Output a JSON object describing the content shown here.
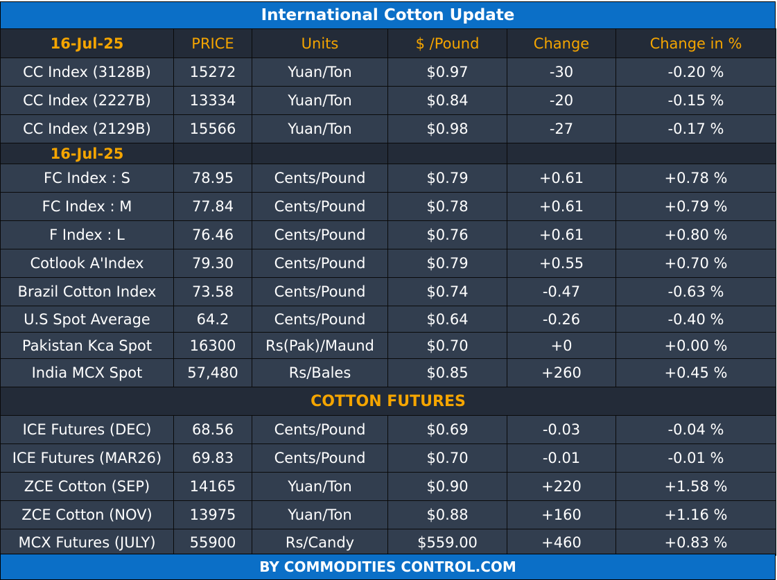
{
  "title": "International Cotton Update",
  "footer": "BY  COMMODITIES CONTROL.COM",
  "colors": {
    "banner": "#0b6fc7",
    "cell_bg": "#323e4f",
    "header_bg": "#232b38",
    "header_text": "#f5a500",
    "text": "#ffffff"
  },
  "header": {
    "date": "16-Jul-25",
    "price": "PRICE",
    "units": "Units",
    "usd_per_pound": "$ /Pound",
    "change": "Change",
    "change_pct": "Change in %"
  },
  "cc_rows": [
    {
      "name": "CC Index (3128B)",
      "price": "15272",
      "units": "Yuan/Ton",
      "usd": "$0.97",
      "change": "-30",
      "pct": "-0.20 %"
    },
    {
      "name": "CC Index (2227B)",
      "price": "13334",
      "units": "Yuan/Ton",
      "usd": "$0.84",
      "change": "-20",
      "pct": "-0.15 %"
    },
    {
      "name": "CC Index (2129B)",
      "price": "15566",
      "units": "Yuan/Ton",
      "usd": "$0.98",
      "change": "-27",
      "pct": "-0.17 %"
    }
  ],
  "section2_date": "16-Jul-25",
  "index_rows": [
    {
      "name": "FC Index : S",
      "price": "78.95",
      "units": "Cents/Pound",
      "usd": "$0.79",
      "change": "+0.61",
      "pct": "+0.78 %"
    },
    {
      "name": "FC Index : M",
      "price": "77.84",
      "units": "Cents/Pound",
      "usd": "$0.78",
      "change": "+0.61",
      "pct": "+0.79 %"
    },
    {
      "name": "F Index : L",
      "price": "76.46",
      "units": "Cents/Pound",
      "usd": "$0.76",
      "change": "+0.61",
      "pct": "+0.80 %"
    },
    {
      "name": "Cotlook A'Index",
      "price": "79.30",
      "units": "Cents/Pound",
      "usd": "$0.79",
      "change": "+0.55",
      "pct": "+0.70 %"
    },
    {
      "name": "Brazil Cotton Index",
      "price": "73.58",
      "units": "Cents/Pound",
      "usd": "$0.74",
      "change": "-0.47",
      "pct": "-0.63 %"
    },
    {
      "name": "U.S Spot Average",
      "price": "64.2",
      "units": "Cents/Pound",
      "usd": "$0.64",
      "change": "-0.26",
      "pct": "-0.40 %"
    },
    {
      "name": "Pakistan Kca Spot",
      "price": "16300",
      "units": "Rs(Pak)/Maund",
      "usd": "$0.70",
      "change": "+0",
      "pct": "+0.00 %"
    },
    {
      "name": "India MCX Spot",
      "price": "57,480",
      "units": "Rs/Bales",
      "usd": "$0.85",
      "change": "+260",
      "pct": "+0.45 %"
    }
  ],
  "futures_title": "COTTON FUTURES",
  "futures_rows": [
    {
      "name": "ICE Futures (DEC)",
      "price": "68.56",
      "units": "Cents/Pound",
      "usd": "$0.69",
      "change": "-0.03",
      "pct": "-0.04 %"
    },
    {
      "name": "ICE Futures (MAR26)",
      "price": "69.83",
      "units": "Cents/Pound",
      "usd": "$0.70",
      "change": "-0.01",
      "pct": "-0.01 %"
    },
    {
      "name": "ZCE Cotton (SEP)",
      "price": "14165",
      "units": "Yuan/Ton",
      "usd": "$0.90",
      "change": "+220",
      "pct": "+1.58 %"
    },
    {
      "name": "ZCE Cotton (NOV)",
      "price": "13975",
      "units": "Yuan/Ton",
      "usd": "$0.88",
      "change": "+160",
      "pct": "+1.16 %"
    },
    {
      "name": "MCX Futures (JULY)",
      "price": "55900",
      "units": "Rs/Candy",
      "usd": "$559.00",
      "change": "+460",
      "pct": "+0.83 %"
    }
  ]
}
